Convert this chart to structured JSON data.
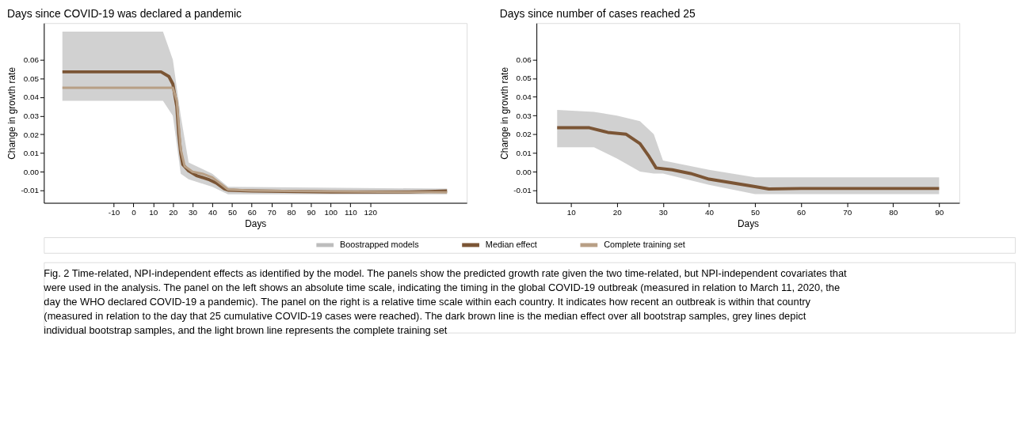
{
  "chart_data": [
    {
      "type": "line",
      "title": "Days since COVID-19 was declared a pandemic",
      "xlabel": "Days",
      "ylabel": "Change in growth rate",
      "xlim": [
        -45.4,
        169
      ],
      "xticks": [
        -10,
        0,
        10,
        20,
        30,
        40,
        50,
        60,
        70,
        80,
        90,
        100,
        110,
        120
      ],
      "ylim": [
        -0.0166,
        0.0796
      ],
      "yticks": [
        -0.01,
        {
          "value": 0,
          "label": "0.00"
        },
        0.01,
        0.02,
        0.03,
        0.04,
        0.05,
        0.06
      ],
      "grid": false,
      "legend": "bottom",
      "line_style": "solid",
      "marker": "none",
      "series": [
        {
          "name": "Boostrapped models",
          "color": "#bdbdbd",
          "type": "area",
          "x": [
            -36,
            15,
            20,
            24,
            28,
            40,
            48,
            159
          ],
          "values": [
            null,
            null,
            null,
            null,
            null,
            null,
            null,
            null
          ],
          "lower": [
            0.038,
            0.038,
            0.03,
            -0.001,
            -0.004,
            -0.008,
            -0.012,
            -0.012
          ],
          "upper": [
            0.075,
            0.075,
            0.06,
            0.03,
            0.005,
            -0.001,
            -0.008,
            -0.009
          ]
        },
        {
          "name": "Median effect",
          "color": "#7b5535",
          "x": [
            -36,
            14,
            18,
            20,
            22,
            23,
            24,
            25,
            28,
            32,
            38,
            42,
            46,
            48,
            60,
            100,
            140,
            150,
            159
          ],
          "values": [
            0.0535,
            0.0535,
            0.051,
            0.047,
            0.035,
            0.02,
            0.01,
            0.004,
            0.0005,
            -0.002,
            -0.004,
            -0.006,
            -0.009,
            -0.0098,
            -0.0102,
            -0.0108,
            -0.0108,
            -0.0105,
            -0.0102
          ]
        },
        {
          "name": "Complete training set",
          "color": "#b89f85",
          "x": [
            -36,
            20,
            22,
            24,
            26,
            30,
            35,
            40,
            45,
            48,
            60,
            100,
            159
          ],
          "values": [
            0.045,
            0.045,
            0.038,
            0.012,
            0.003,
            0.0,
            -0.001,
            -0.003,
            -0.007,
            -0.0095,
            -0.01,
            -0.0105,
            -0.011
          ]
        }
      ],
      "annotations": [
        "Fig. 2 Time-related, NPI-independent effects as identified by the model. The panels show the predicted growth rate given the two time-related, but NPI-independent covariates that were used in the analysis. The panel on the left shows an absolute time scale, indicating the timing in the global COVID-19 outbreak (measured in relation to March 11, 2020, the day the WHO declared COVID-19 a pandemic). The panel on the right is a relative time scale within each country. It indicates how recent an outbreak is within that country (measured in relation to the day that 25 cumulative COVID-19 cases were reached). The dark brown line is the median effect over all bootstrap samples, grey lines depict individual bootstrap samples, and the light brown line represents the complete training set"
      ]
    },
    {
      "type": "line",
      "title": "Days since number of cases reached 25",
      "xlabel": "Days",
      "ylabel": "Change in growth rate",
      "xlim": [
        2.5,
        94.4
      ],
      "xticks": [
        10,
        20,
        30,
        40,
        50,
        60,
        70,
        80,
        90
      ],
      "ylim": [
        -0.0167,
        0.0795
      ],
      "yticks": [
        -0.01,
        {
          "value": 0,
          "label": "0.00"
        },
        0.01,
        0.02,
        0.03,
        0.04,
        0.05,
        0.06
      ],
      "grid": false,
      "line_style": "solid",
      "marker": "none",
      "series": [
        {
          "color": "#bdbdbd",
          "type": "area",
          "x": [
            7,
            15,
            20,
            25,
            28,
            30,
            40,
            50,
            55,
            90
          ],
          "values": [
            null,
            null,
            null,
            null,
            null,
            null,
            null,
            null,
            null,
            null
          ],
          "lower": [
            0.013,
            0.013,
            0.007,
            0.0,
            -0.001,
            -0.001,
            -0.007,
            -0.012,
            -0.012,
            -0.012
          ],
          "upper": [
            0.033,
            0.032,
            0.03,
            0.027,
            0.02,
            0.006,
            0.001,
            -0.003,
            -0.003,
            -0.003
          ]
        },
        {
          "color": "#7b5535",
          "x": [
            7,
            14,
            18,
            22,
            25,
            27,
            28.5,
            32,
            36,
            40,
            45,
            50,
            53,
            60,
            90
          ],
          "values": [
            0.0235,
            0.0235,
            0.021,
            0.02,
            0.015,
            0.008,
            0.002,
            0.001,
            -0.001,
            -0.004,
            -0.006,
            -0.008,
            -0.0093,
            -0.009,
            -0.009
          ]
        }
      ]
    }
  ]
}
